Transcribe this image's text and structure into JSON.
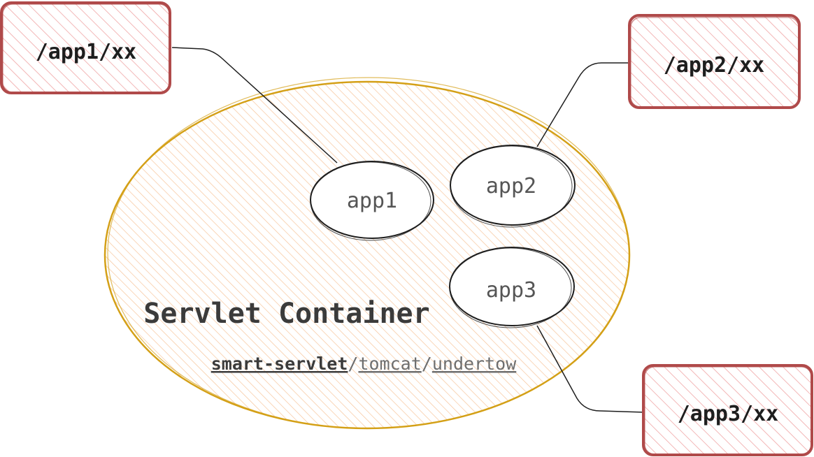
{
  "container": {
    "title": "Servlet Container",
    "implementations": {
      "primary": "smart-servlet",
      "sep1": "/",
      "second": "tomcat",
      "sep2": "/",
      "third": "undertow"
    }
  },
  "apps": [
    {
      "label": "app1"
    },
    {
      "label": "app2"
    },
    {
      "label": "app3"
    }
  ],
  "routes": [
    {
      "label": "/app1/xx"
    },
    {
      "label": "/app2/xx"
    },
    {
      "label": "/app3/xx"
    }
  ],
  "colors": {
    "container_fill": "#ffe8cc",
    "container_stroke": "#d4a017",
    "route_fill": "#ffc9c9",
    "route_stroke": "#b04a4a",
    "connector": "#1e1e1e"
  }
}
